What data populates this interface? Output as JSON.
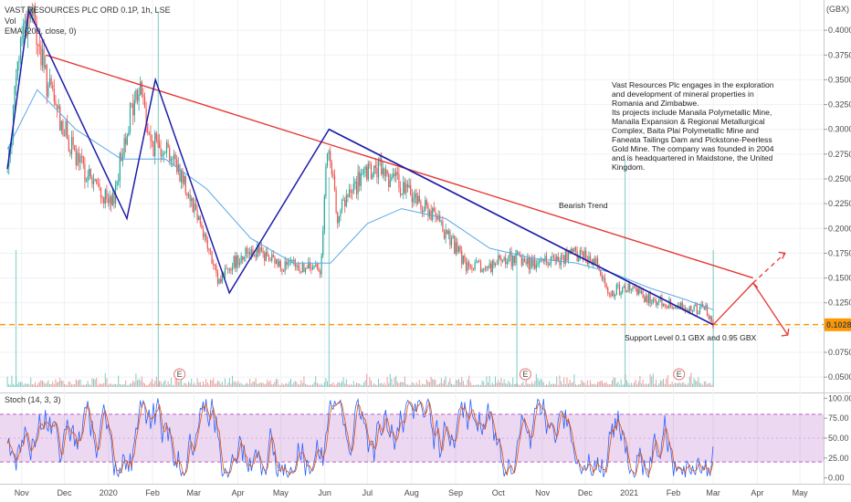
{
  "header": {
    "symbol": "VAST RESOURCES PLC ORD 0.1P, 1h, LSE",
    "vol": "Vol",
    "ema": "EMA (200, close, 0)",
    "currency": "GBX"
  },
  "price_panel": {
    "y_ticks": [
      "0.4000",
      "0.3750",
      "0.3500",
      "0.3250",
      "0.3000",
      "0.2750",
      "0.2500",
      "0.2250",
      "0.2000",
      "0.1750",
      "0.1500",
      "0.1250",
      "0.1000",
      "0.0750",
      "0.0500"
    ],
    "last_price": "0.1028",
    "ylim": [
      0.04,
      0.425
    ]
  },
  "stoch_panel": {
    "title": "Stoch (14, 3, 3)",
    "y_ticks": [
      "100.00",
      "75.00",
      "50.00",
      "25.00",
      "0.00"
    ],
    "ylim": [
      -5,
      105
    ],
    "bands": [
      20,
      80
    ]
  },
  "x_ticks": [
    "Nov",
    "Dec",
    "2020",
    "Feb",
    "Mar",
    "Apr",
    "May",
    "Jun",
    "Jul",
    "Aug",
    "Sep",
    "Oct",
    "Nov",
    "Dec",
    "2021",
    "Feb",
    "Mar",
    "Apr",
    "May"
  ],
  "annotations": {
    "description": [
      "Vast Resources Plc engages in the exploration",
      "and development of mineral properties in",
      "Romania and Zimbabwe.",
      "Its projects include Manaila Polymetallic Mine,",
      " Manaila Expansion & Regional Metallurgical",
      "Complex, Baita Plai Polymetallic Mine and",
      "Faneata Tailings Dam and Pickstone-Peerless",
      "Gold Mine. The company was founded in 2004",
      "and is headquartered in Maidstone, the United",
      "Kingdom."
    ],
    "trend_label": "Bearish Trend",
    "support_label": "Support Level 0.1 GBX and 0.95 GBX",
    "earnings_marker": "E"
  },
  "chart_data": {
    "type": "candlestick",
    "title": "VAST RESOURCES PLC ORD 0.1P, 1h, LSE",
    "currency": "GBX",
    "indicators": [
      "Vol",
      "EMA (200, close, 0)",
      "Stoch (14, 3, 3)"
    ],
    "price_outline": {
      "x": [
        "2019-10-22",
        "2019-11-01",
        "2019-11-08",
        "2019-11-18",
        "2019-11-28",
        "2019-12-09",
        "2019-12-20",
        "2020-01-03",
        "2020-01-15",
        "2020-01-24",
        "2020-01-30",
        "2020-02-10",
        "2020-02-21",
        "2020-03-05",
        "2020-03-18",
        "2020-03-24",
        "2020-04-10",
        "2020-04-28",
        "2020-05-15",
        "2020-05-29",
        "2020-06-03",
        "2020-06-10",
        "2020-06-26",
        "2020-07-10",
        "2020-07-27",
        "2020-08-12",
        "2020-08-28",
        "2020-09-09",
        "2020-09-23",
        "2020-10-08",
        "2020-10-26",
        "2020-11-12",
        "2020-11-27",
        "2020-12-10",
        "2020-12-17",
        "2020-12-29",
        "2021-01-12",
        "2021-01-26",
        "2021-02-10",
        "2021-02-24",
        "2021-03-01"
      ],
      "close": [
        0.26,
        0.4,
        0.42,
        0.35,
        0.31,
        0.27,
        0.25,
        0.22,
        0.31,
        0.345,
        0.285,
        0.285,
        0.255,
        0.21,
        0.145,
        0.16,
        0.18,
        0.165,
        0.16,
        0.16,
        0.28,
        0.215,
        0.25,
        0.26,
        0.24,
        0.22,
        0.19,
        0.16,
        0.16,
        0.17,
        0.165,
        0.17,
        0.175,
        0.165,
        0.135,
        0.14,
        0.13,
        0.125,
        0.12,
        0.118,
        0.1028
      ]
    },
    "ema200": {
      "x": [
        "2019-10-22",
        "2019-11-12",
        "2019-12-09",
        "2020-01-10",
        "2020-02-10",
        "2020-03-10",
        "2020-04-10",
        "2020-05-10",
        "2020-06-05",
        "2020-07-01",
        "2020-07-25",
        "2020-08-25",
        "2020-09-25",
        "2020-10-25",
        "2020-11-25",
        "2020-12-20",
        "2021-01-15",
        "2021-02-10",
        "2021-03-01"
      ],
      "y": [
        0.28,
        0.34,
        0.3,
        0.27,
        0.27,
        0.24,
        0.19,
        0.165,
        0.165,
        0.205,
        0.22,
        0.21,
        0.18,
        0.17,
        0.165,
        0.155,
        0.14,
        0.128,
        0.118
      ]
    },
    "zigzag": {
      "x": [
        "2019-10-22",
        "2019-11-06",
        "2020-01-14",
        "2020-02-03",
        "2020-03-26",
        "2020-06-04",
        "2021-03-01"
      ],
      "y": [
        0.26,
        0.42,
        0.21,
        0.35,
        0.135,
        0.3,
        0.1028
      ]
    },
    "resistance_line": {
      "x": [
        "2019-11-18",
        "2021-03-29"
      ],
      "y": [
        0.375,
        0.15
      ]
    },
    "support_line": {
      "y": 0.103,
      "style": "dashed"
    },
    "projection": {
      "x": [
        "2021-03-01",
        "2021-03-29"
      ],
      "y": [
        0.1028,
        0.145
      ],
      "up_target": 0.175,
      "down_target": 0.098
    },
    "volume_spikes": {
      "x": [
        "2019-10-28",
        "2020-02-05",
        "2020-06-04",
        "2020-10-14",
        "2020-12-29",
        "2021-03-01"
      ],
      "relative": [
        0.35,
        1.0,
        0.55,
        0.35,
        0.6,
        0.35
      ]
    },
    "earnings_dates": [
      "2020-02-20",
      "2020-10-20",
      "2021-02-05"
    ],
    "stoch": {
      "k_range": [
        0,
        100
      ],
      "upper_band": 80,
      "lower_band": 20
    }
  }
}
